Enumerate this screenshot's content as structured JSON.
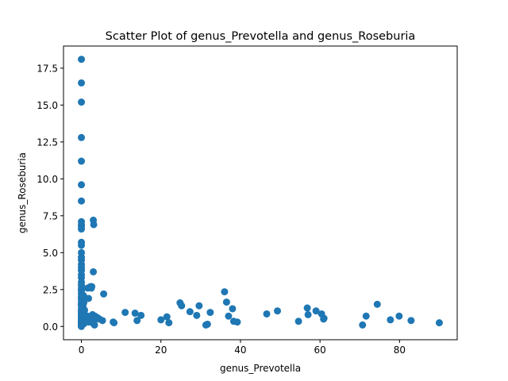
{
  "chart_data": {
    "type": "scatter",
    "title": "Scatter Plot of genus_Prevotella and genus_Roseburia",
    "xlabel": "genus_Prevotella",
    "ylabel": "genus_Roseburia",
    "xlim": [
      -4.5,
      94.5
    ],
    "ylim": [
      -0.9,
      19.0
    ],
    "xticks": [
      0,
      20,
      40,
      60,
      80
    ],
    "yticks": [
      0.0,
      2.5,
      5.0,
      7.5,
      10.0,
      12.5,
      15.0,
      17.5
    ],
    "ytick_labels": [
      "0.0",
      "2.5",
      "5.0",
      "7.5",
      "10.0",
      "12.5",
      "15.0",
      "17.5"
    ],
    "grid": false,
    "marker_color": "#1f77b4",
    "series": [
      {
        "x": [
          0.0,
          0.0,
          0.0,
          0.0,
          0.0,
          0.0,
          0.0,
          0.0,
          0.0,
          0.0,
          0.0,
          0.0,
          0.0,
          0.0,
          0.0,
          0.0,
          0.0,
          0.0,
          0.0,
          0.0,
          0.0,
          0.0,
          0.0,
          0.0,
          0.0,
          0.0,
          0.0,
          0.0,
          0.0,
          0.0,
          0.0,
          0.0,
          0.0,
          0.0,
          0.0,
          0.0,
          0.0,
          0.0,
          0.0,
          0.0,
          0.0,
          0.0,
          0.0,
          0.0,
          0.0,
          0.0,
          0.0,
          0.0,
          0.0,
          0.0,
          0.3,
          0.5,
          0.5,
          0.6,
          0.4,
          0.8,
          0.6,
          0.3,
          0.5,
          0.7,
          1.5,
          1.8,
          1.6,
          1.7,
          2.0,
          1.9,
          2.1,
          2.3,
          2.6,
          2.5,
          2.8,
          3.0,
          2.2,
          3.1,
          3.0,
          2.7,
          3.2,
          3.3,
          3.0,
          2.9,
          3.1,
          3.4,
          3.6,
          4.0,
          4.5,
          5.3,
          5.6,
          8.0,
          8.2,
          11.0,
          13.5,
          14.0,
          15.0,
          20.0,
          21.5,
          22.0,
          24.8,
          25.2,
          27.3,
          29.0,
          29.6,
          31.3,
          31.7,
          32.4,
          36.0,
          36.5,
          37.0,
          38.0,
          38.3,
          39.2,
          46.6,
          49.3,
          54.6,
          56.8,
          57.0,
          59.0,
          60.4,
          60.9,
          61.0,
          70.7,
          71.6,
          74.4,
          77.7,
          79.9,
          82.9,
          90.0
        ],
        "y": [
          18.1,
          16.5,
          15.2,
          12.8,
          11.2,
          9.6,
          8.5,
          7.1,
          6.9,
          6.8,
          6.6,
          5.7,
          5.5,
          5.0,
          4.7,
          4.5,
          4.2,
          4.0,
          3.8,
          3.5,
          3.3,
          3.0,
          2.8,
          2.6,
          2.5,
          2.4,
          2.2,
          2.0,
          1.9,
          1.8,
          1.6,
          1.5,
          1.4,
          1.2,
          1.1,
          1.0,
          0.9,
          0.8,
          0.7,
          0.6,
          0.5,
          0.4,
          0.3,
          0.25,
          0.2,
          0.15,
          0.1,
          0.05,
          0.02,
          0.0,
          1.9,
          1.7,
          2.1,
          1.6,
          1.3,
          1.1,
          0.9,
          0.6,
          0.4,
          0.2,
          0.7,
          1.9,
          2.6,
          0.4,
          0.6,
          0.3,
          0.5,
          2.7,
          2.7,
          2.6,
          0.8,
          7.2,
          0.6,
          6.9,
          3.7,
          0.3,
          0.5,
          0.1,
          0.2,
          0.4,
          0.6,
          0.7,
          0.5,
          0.6,
          0.5,
          0.4,
          2.2,
          0.3,
          0.25,
          0.95,
          0.9,
          0.4,
          0.75,
          0.45,
          0.65,
          0.25,
          1.6,
          1.4,
          1.0,
          0.75,
          1.4,
          0.1,
          0.15,
          0.95,
          2.35,
          1.65,
          0.7,
          1.2,
          0.35,
          0.3,
          0.85,
          1.05,
          0.35,
          1.25,
          0.8,
          1.05,
          0.85,
          0.5,
          0.55,
          0.1,
          0.7,
          1.5,
          0.45,
          0.7,
          0.4,
          0.25
        ]
      }
    ]
  }
}
